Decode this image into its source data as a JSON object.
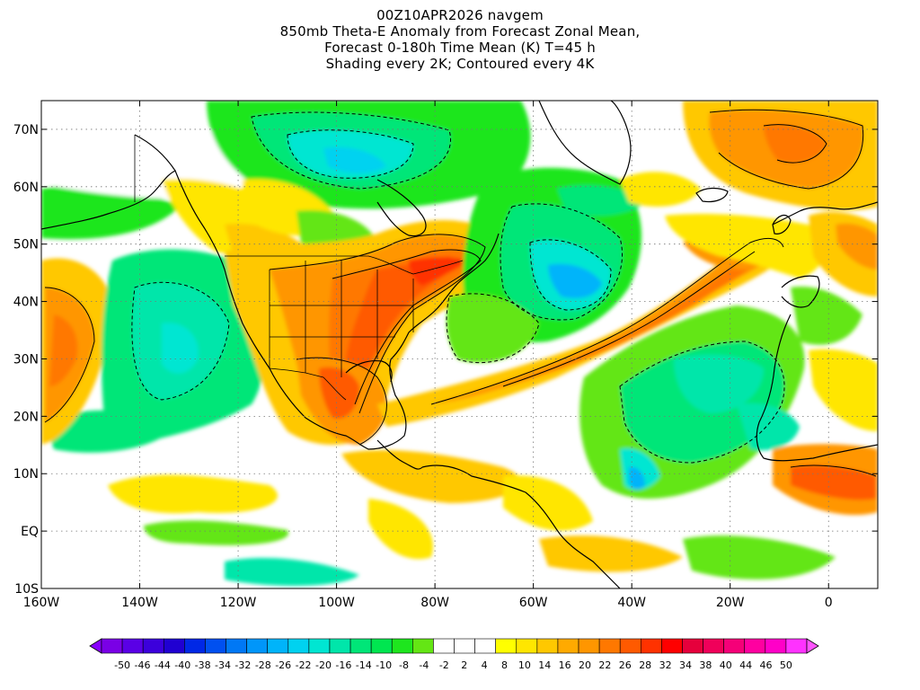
{
  "title": {
    "line1": "00Z10APR2026 navgem",
    "line2": "850mb Theta-E Anomaly from Forecast Zonal Mean,",
    "line3": "Forecast 0-180h Time Mean (K) T=45 h",
    "line4": "Shading every 2K; Contoured every 4K"
  },
  "map": {
    "lon_range": [
      -160,
      10
    ],
    "lat_range": [
      -10,
      75
    ],
    "lon_ticks": [
      {
        "value": -160,
        "label": "160W"
      },
      {
        "value": -140,
        "label": "140W"
      },
      {
        "value": -120,
        "label": "120W"
      },
      {
        "value": -100,
        "label": "100W"
      },
      {
        "value": -80,
        "label": "80W"
      },
      {
        "value": -60,
        "label": "60W"
      },
      {
        "value": -40,
        "label": "40W"
      },
      {
        "value": -20,
        "label": "20W"
      },
      {
        "value": 0,
        "label": "0"
      }
    ],
    "lat_ticks": [
      {
        "value": 70,
        "label": "70N"
      },
      {
        "value": 60,
        "label": "60N"
      },
      {
        "value": 50,
        "label": "50N"
      },
      {
        "value": 40,
        "label": "40N"
      },
      {
        "value": 30,
        "label": "30N"
      },
      {
        "value": 20,
        "label": "20N"
      },
      {
        "value": 10,
        "label": "10N"
      },
      {
        "value": 0,
        "label": "EQ"
      },
      {
        "value": -10,
        "label": "10S"
      }
    ]
  },
  "colorbar": {
    "labels": [
      "-50",
      "-46",
      "-44",
      "-40",
      "-38",
      "-34",
      "-32",
      "-28",
      "-26",
      "-22",
      "-20",
      "-16",
      "-14",
      "-10",
      "-8",
      "-4",
      "-2",
      "2",
      "4",
      "8",
      "10",
      "14",
      "16",
      "20",
      "22",
      "26",
      "28",
      "32",
      "34",
      "38",
      "40",
      "44",
      "46",
      "50"
    ],
    "colors": [
      "#7a00e6",
      "#5a00e6",
      "#3c00dc",
      "#2000d2",
      "#0028e6",
      "#0050f0",
      "#0078f5",
      "#0096fa",
      "#00b4fa",
      "#00d2f0",
      "#00e6d2",
      "#00e6aa",
      "#00e678",
      "#00e650",
      "#1ee61e",
      "#64e614",
      "#ffffff",
      "#ffffff",
      "#ffffff",
      "#ffff00",
      "#ffe600",
      "#ffc800",
      "#ffaa00",
      "#ff9600",
      "#ff7800",
      "#ff5a00",
      "#ff3200",
      "#ff0000",
      "#e6003c",
      "#f0005a",
      "#f50078",
      "#ff00a0",
      "#ff00c8",
      "#ff32ff"
    ]
  }
}
